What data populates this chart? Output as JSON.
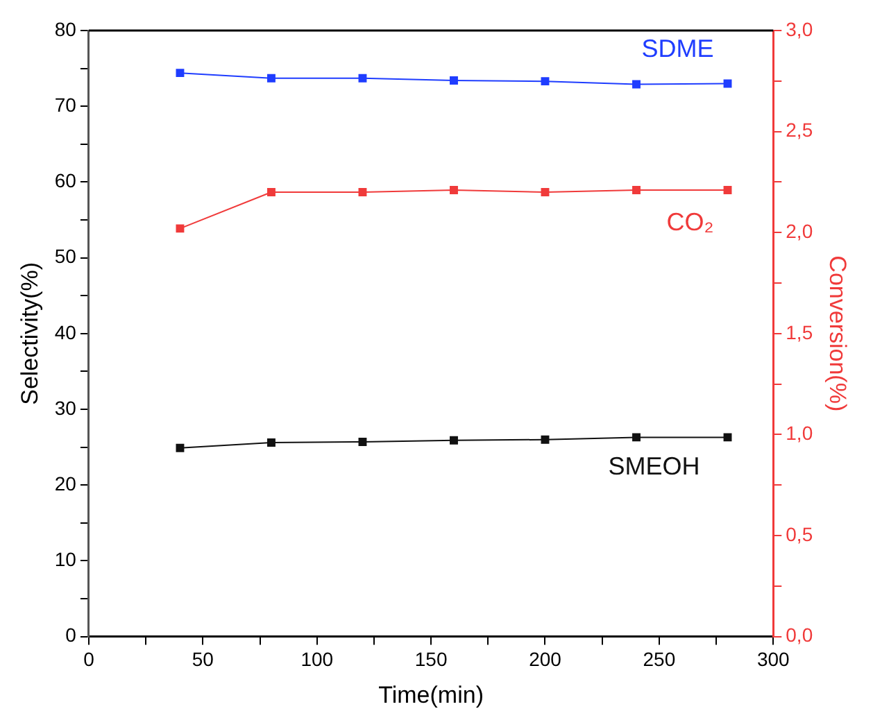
{
  "chart_data": {
    "type": "line",
    "xlabel": "Time(min)",
    "ylabel": "Selectivity(%)",
    "y2label": "Conversion(%)",
    "x": [
      40,
      80,
      120,
      160,
      200,
      240,
      280
    ],
    "series": [
      {
        "name": "SDME",
        "color": "#1f3dff",
        "values": [
          74.4,
          73.7,
          73.7,
          73.4,
          73.3,
          72.9,
          73.0
        ]
      },
      {
        "name": "CO₂",
        "color": "#f03a3a",
        "axis": "y2",
        "values": [
          2.02,
          2.2,
          2.2,
          2.21,
          2.2,
          2.21,
          2.21
        ]
      },
      {
        "name": "SMEOH",
        "color": "#111111",
        "values": [
          24.9,
          25.6,
          25.7,
          25.9,
          26.0,
          26.3,
          26.3
        ]
      }
    ],
    "xlim": [
      0,
      300
    ],
    "xticks": [
      0,
      {
        "value": 25,
        "label": null
      },
      50,
      {
        "value": 75,
        "label": null
      },
      100,
      {
        "value": 125,
        "label": null
      },
      150,
      {
        "value": 175,
        "label": null
      },
      200,
      {
        "value": 225,
        "label": null
      },
      250,
      {
        "value": 275,
        "label": null
      },
      300
    ],
    "ylim": [
      0,
      80
    ],
    "yticks": [
      0,
      {
        "value": 5,
        "label": null
      },
      10,
      {
        "value": 15,
        "label": null
      },
      20,
      {
        "value": 25,
        "label": null
      },
      30,
      {
        "value": 35,
        "label": null
      },
      40,
      {
        "value": 45,
        "label": null
      },
      50,
      {
        "value": 55,
        "label": null
      },
      60,
      {
        "value": 65,
        "label": null
      },
      70,
      {
        "value": 75,
        "label": null
      },
      80
    ],
    "y2lim": [
      0,
      3
    ],
    "y2ticks": [
      {
        "value": 0,
        "label": "0,0"
      },
      {
        "value": 0.25,
        "label": null
      },
      {
        "value": 0.5,
        "label": "0,5"
      },
      {
        "value": 0.75,
        "label": null
      },
      {
        "value": 1,
        "label": "1,0"
      },
      {
        "value": 1.25,
        "label": null
      },
      {
        "value": 1.5,
        "label": "1,5"
      },
      {
        "value": 1.75,
        "label": null
      },
      {
        "value": 2,
        "label": "2,0"
      },
      {
        "value": 2.25,
        "label": null
      },
      {
        "value": 2.5,
        "label": "2,5"
      },
      {
        "value": 2.75,
        "label": null
      },
      {
        "value": 3,
        "label": "3,0"
      }
    ],
    "grid": false,
    "legend": false,
    "marker": "square",
    "line_style": "solid"
  }
}
